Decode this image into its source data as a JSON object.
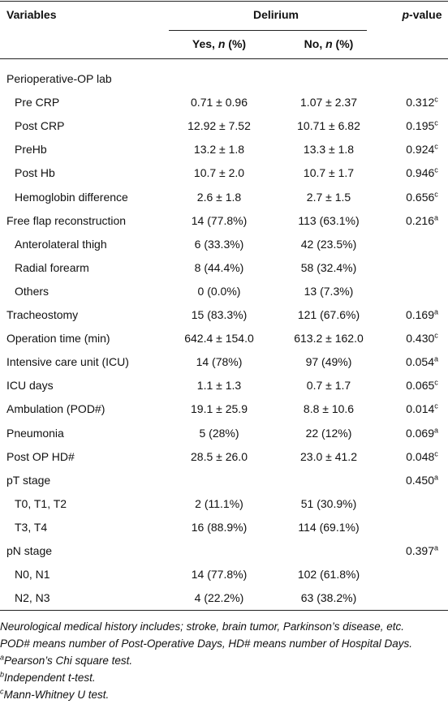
{
  "header": {
    "variables": "Variables",
    "group": "Delirium",
    "p_value": {
      "em": "p",
      "text": "-value"
    },
    "yes": {
      "pre": "Yes, ",
      "em": "n",
      "post": " (%)"
    },
    "no": {
      "pre": "No, ",
      "em": "n",
      "post": " (%)"
    }
  },
  "rows": [
    {
      "label": "Perioperative-OP lab"
    },
    {
      "label": "Pre CRP",
      "sub": true,
      "yes": "0.71 ± 0.96",
      "no": "1.07 ± 2.37",
      "p": "0.312",
      "sup": "c"
    },
    {
      "label": "Post CRP",
      "sub": true,
      "yes": "12.92 ± 7.52",
      "no": "10.71 ± 6.82",
      "p": "0.195",
      "sup": "c"
    },
    {
      "label": "PreHb",
      "sub": true,
      "yes": "13.2 ± 1.8",
      "no": "13.3 ± 1.8",
      "p": "0.924",
      "sup": "c"
    },
    {
      "label": "Post Hb",
      "sub": true,
      "yes": "10.7 ± 2.0",
      "no": "10.7 ± 1.7",
      "p": "0.946",
      "sup": "c"
    },
    {
      "label": "Hemoglobin difference",
      "sub": true,
      "yes": "2.6 ± 1.8",
      "no": "2.7 ± 1.5",
      "p": "0.656",
      "sup": "c"
    },
    {
      "label": "Free flap reconstruction",
      "yes": "14 (77.8%)",
      "no": "113 (63.1%)",
      "p": "0.216",
      "sup": "a"
    },
    {
      "label": "Anterolateral thigh",
      "sub": true,
      "yes": "6 (33.3%)",
      "no": "42 (23.5%)"
    },
    {
      "label": "Radial forearm",
      "sub": true,
      "yes": "8 (44.4%)",
      "no": "58 (32.4%)"
    },
    {
      "label": "Others",
      "sub": true,
      "yes": "0 (0.0%)",
      "no": "13 (7.3%)"
    },
    {
      "label": "Tracheostomy",
      "yes": "15 (83.3%)",
      "no": "121 (67.6%)",
      "p": "0.169",
      "sup": "a"
    },
    {
      "label": "Operation time (min)",
      "yes": "642.4 ± 154.0",
      "no": "613.2 ± 162.0",
      "p": "0.430",
      "sup": "c"
    },
    {
      "label": "Intensive care unit (ICU)",
      "yes": "14 (78%)",
      "no": "97 (49%)",
      "p": "0.054",
      "sup": "a"
    },
    {
      "label": "ICU days",
      "yes": "1.1 ± 1.3",
      "no": "0.7 ± 1.7",
      "p": "0.065",
      "sup": "c"
    },
    {
      "label": "Ambulation (POD#)",
      "yes": "19.1 ± 25.9",
      "no": "8.8 ± 10.6",
      "p": "0.014",
      "sup": "c"
    },
    {
      "label": "Pneumonia",
      "yes": "5 (28%)",
      "no": "22 (12%)",
      "p": "0.069",
      "sup": "a"
    },
    {
      "label": "Post OP HD#",
      "yes": "28.5 ± 26.0",
      "no": "23.0 ± 41.2",
      "p": "0.048",
      "sup": "c"
    },
    {
      "label": "pT stage",
      "p": "0.450",
      "sup": "a"
    },
    {
      "label": "T0, T1, T2",
      "sub": true,
      "yes": "2 (11.1%)",
      "no": "51 (30.9%)"
    },
    {
      "label": "T3, T4",
      "sub": true,
      "yes": "16 (88.9%)",
      "no": "114 (69.1%)"
    },
    {
      "label": "pN stage",
      "p": "0.397",
      "sup": "a"
    },
    {
      "label": "N0, N1",
      "sub": true,
      "yes": "14 (77.8%)",
      "no": "102 (61.8%)"
    },
    {
      "label": "N2, N3",
      "sub": true,
      "yes": "4 (22.2%)",
      "no": "63 (38.2%)"
    }
  ],
  "footnotes": [
    {
      "text": "Neurological medical history includes; stroke, brain tumor, Parkinson’s disease, etc."
    },
    {
      "text": "POD# means number of Post-Operative Days, HD# means number of Hospital Days."
    },
    {
      "sup": "a",
      "text": "Pearson’s Chi square test."
    },
    {
      "sup": "b",
      "text": "Independent t-test."
    },
    {
      "sup": "c",
      "text": "Mann-Whitney U test."
    }
  ]
}
